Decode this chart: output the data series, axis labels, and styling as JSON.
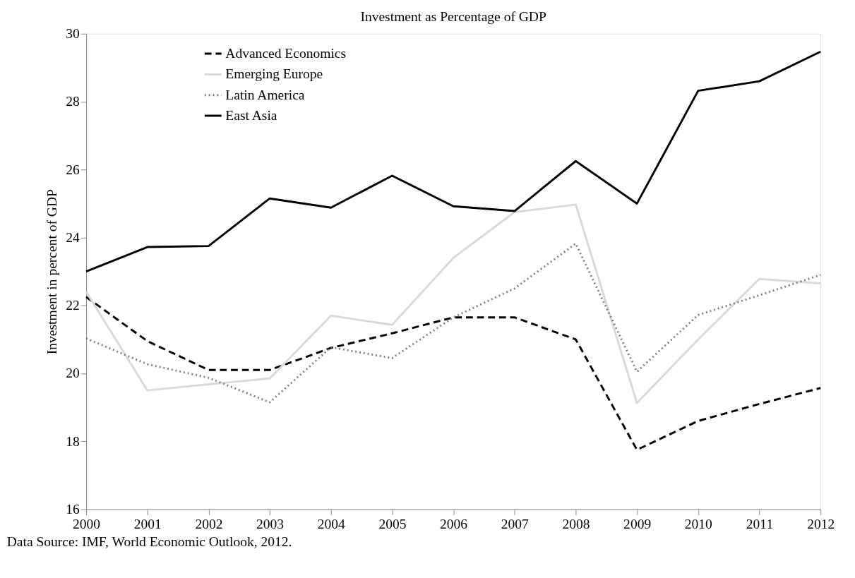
{
  "chart_data": {
    "type": "line",
    "title": "Investment as Percentage of GDP",
    "ylabel": "Investment in percent of GDP",
    "x": [
      2000,
      2001,
      2002,
      2003,
      2004,
      2005,
      2006,
      2007,
      2008,
      2009,
      2010,
      2011,
      2012
    ],
    "series": [
      {
        "name": "Advanced Economics",
        "color": "#000000",
        "line_style": "dashed",
        "values": [
          22.25,
          20.95,
          20.1,
          20.1,
          20.75,
          21.18,
          21.65,
          21.65,
          21.0,
          17.75,
          18.6,
          19.1,
          19.57
        ]
      },
      {
        "name": "Emerging Europe",
        "color": "#d9d9d9",
        "line_style": "solid",
        "values": [
          22.4,
          19.5,
          19.68,
          19.85,
          21.7,
          21.43,
          23.4,
          24.75,
          24.97,
          19.13,
          21.0,
          22.78,
          22.65
        ]
      },
      {
        "name": "Latin America",
        "color": "#808080",
        "line_style": "dotted",
        "values": [
          21.03,
          20.27,
          19.87,
          19.15,
          20.77,
          20.45,
          21.65,
          22.5,
          23.82,
          20.05,
          21.72,
          22.3,
          22.9
        ]
      },
      {
        "name": "East Asia",
        "color": "#000000",
        "line_style": "solid",
        "values": [
          23.0,
          23.72,
          23.75,
          25.15,
          24.88,
          25.82,
          24.92,
          24.78,
          26.25,
          25.0,
          28.32,
          28.6,
          29.47
        ]
      }
    ],
    "xlim": [
      2000,
      2012
    ],
    "xticks": [
      2000,
      2001,
      2002,
      2003,
      2004,
      2005,
      2006,
      2007,
      2008,
      2009,
      2010,
      2011,
      2012
    ],
    "ylim": [
      16,
      30
    ],
    "yticks": [
      16,
      18,
      20,
      22,
      24,
      26,
      28,
      30
    ],
    "grid": false,
    "legend": "top left",
    "marker": "none",
    "annotations": [
      "Data Source: IMF, World Economic Outlook, 2012."
    ]
  }
}
